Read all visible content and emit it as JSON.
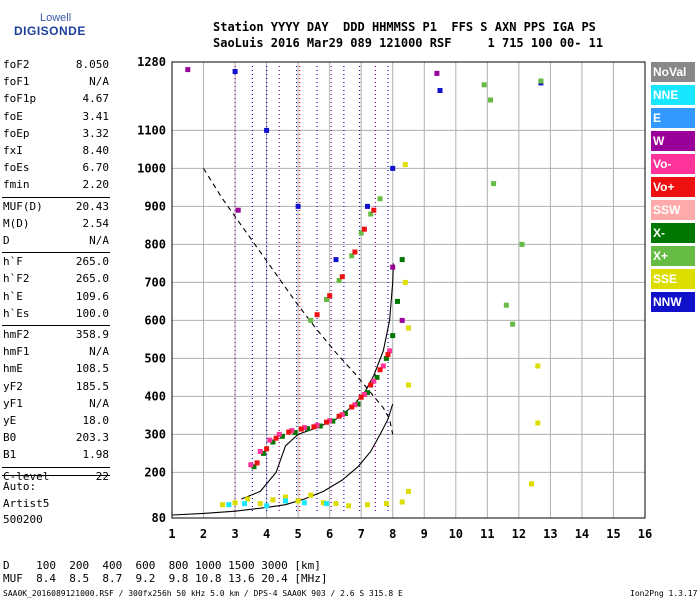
{
  "logo": {
    "line1": "Lowell",
    "line2": "DIGISONDE"
  },
  "header": {
    "row1": "Station YYYY DAY  DDD HHMMSS P1  FFS S AXN PPS IGA PS",
    "row2": "SaoLuis 2016 Mar29 089 121000 RSF     1 715 100 00- 11"
  },
  "params": [
    {
      "name": "foF2",
      "value": "8.050"
    },
    {
      "name": "foF1",
      "value": "N/A"
    },
    {
      "name": "foF1p",
      "value": "4.67"
    },
    {
      "name": "foE",
      "value": "3.41"
    },
    {
      "name": "foEp",
      "value": "3.32"
    },
    {
      "name": "fxI",
      "value": "8.40"
    },
    {
      "name": "foEs",
      "value": "6.70"
    },
    {
      "name": "fmin",
      "value": "2.20"
    },
    {
      "name": "MUF(D)",
      "value": "20.43"
    },
    {
      "name": "M(D)",
      "value": "2.54"
    },
    {
      "name": "D",
      "value": "N/A"
    },
    {
      "name": "h`F",
      "value": "265.0"
    },
    {
      "name": "h`F2",
      "value": "265.0"
    },
    {
      "name": "h`E",
      "value": "109.6"
    },
    {
      "name": "h`Es",
      "value": "100.0"
    },
    {
      "name": "hmF2",
      "value": "358.9"
    },
    {
      "name": "hmF1",
      "value": "N/A"
    },
    {
      "name": "hmE",
      "value": "108.5"
    },
    {
      "name": "yF2",
      "value": "185.5"
    },
    {
      "name": "yF1",
      "value": "N/A"
    },
    {
      "name": "yE",
      "value": "18.0"
    },
    {
      "name": "B0",
      "value": "203.3"
    },
    {
      "name": "B1",
      "value": "1.98"
    },
    {
      "name": "C-level",
      "value": "22"
    }
  ],
  "auto": {
    "line1": "Auto:",
    "line2": "Artist5",
    "line3": "500200"
  },
  "legend": [
    {
      "label": "NoVal",
      "color": "#888888"
    },
    {
      "label": "NNE",
      "color": "#19e6ff"
    },
    {
      "label": "E",
      "color": "#3399ff"
    },
    {
      "label": "W",
      "color": "#990099"
    },
    {
      "label": "Vo-",
      "color": "#ff3399"
    },
    {
      "label": "Vo+",
      "color": "#ee1111"
    },
    {
      "label": "SSW",
      "color": "#ffaaaa"
    },
    {
      "label": "X-",
      "color": "#007700"
    },
    {
      "label": "X+",
      "color": "#66bb44"
    },
    {
      "label": "SSE",
      "color": "#dddd00"
    },
    {
      "label": "NNW",
      "color": "#1111cc"
    }
  ],
  "muf_table": {
    "d_row": "D    100  200  400  600  800 1000 1500 3000 [km]",
    "muf_row": "MUF  8.4  8.5  8.7  9.2  9.8 10.8 13.6 20.4 [MHz]"
  },
  "footer": {
    "left": "SAA0K_2016089121000.RSF / 300fx256h 50 kHz 5.0 km / DPS-4 SAA0K 903 / 2.6 S 315.8 E",
    "right": "Ion2Png 1.3.17"
  },
  "chart_data": {
    "type": "scatter",
    "title": "",
    "xlabel": "",
    "ylabel": "",
    "xlim": [
      1,
      16
    ],
    "ylim": [
      80,
      1280
    ],
    "x_ticks": [
      1,
      2,
      3,
      4,
      5,
      6,
      7,
      8,
      9,
      10,
      11,
      12,
      13,
      14,
      15,
      16
    ],
    "y_ticks": [
      80,
      200,
      300,
      400,
      500,
      600,
      700,
      800,
      900,
      1000,
      1100,
      1280
    ],
    "grid": true,
    "series": [
      {
        "name": "X-",
        "color": "#007700",
        "points": [
          [
            3.6,
            215
          ],
          [
            3.9,
            250
          ],
          [
            4.2,
            280
          ],
          [
            4.5,
            295
          ],
          [
            4.9,
            305
          ],
          [
            5.3,
            315
          ],
          [
            5.7,
            322
          ],
          [
            6.1,
            335
          ],
          [
            6.5,
            355
          ],
          [
            6.9,
            380
          ],
          [
            7.2,
            410
          ],
          [
            7.5,
            450
          ],
          [
            7.8,
            500
          ],
          [
            8.0,
            560
          ],
          [
            8.15,
            650
          ],
          [
            8.3,
            760
          ]
        ]
      },
      {
        "name": "Vo-",
        "color": "#ff3399",
        "points": [
          [
            3.5,
            220
          ],
          [
            3.8,
            255
          ],
          [
            4.1,
            285
          ],
          [
            4.4,
            300
          ],
          [
            4.8,
            310
          ],
          [
            5.2,
            318
          ],
          [
            5.6,
            324
          ],
          [
            6.0,
            336
          ],
          [
            6.4,
            352
          ],
          [
            6.8,
            378
          ],
          [
            7.1,
            405
          ],
          [
            7.4,
            440
          ],
          [
            7.7,
            480
          ],
          [
            7.9,
            520
          ]
        ]
      },
      {
        "name": "Vo+",
        "color": "#ee1111",
        "points": [
          [
            3.7,
            225
          ],
          [
            4.0,
            262
          ],
          [
            4.3,
            290
          ],
          [
            4.7,
            306
          ],
          [
            5.1,
            314
          ],
          [
            5.5,
            320
          ],
          [
            5.9,
            332
          ],
          [
            6.3,
            348
          ],
          [
            6.7,
            372
          ],
          [
            7.0,
            398
          ],
          [
            7.3,
            430
          ],
          [
            7.6,
            470
          ],
          [
            7.85,
            510
          ]
        ]
      },
      {
        "name": "X+",
        "color": "#66bb44",
        "points": [
          [
            5.4,
            600
          ],
          [
            5.9,
            655
          ],
          [
            6.3,
            705
          ],
          [
            6.7,
            770
          ],
          [
            7.0,
            830
          ],
          [
            7.3,
            880
          ],
          [
            7.6,
            920
          ]
        ]
      },
      {
        "name": "Vo+",
        "color": "#ee1111",
        "points": [
          [
            5.6,
            615
          ],
          [
            6.0,
            665
          ],
          [
            6.4,
            715
          ],
          [
            6.8,
            780
          ],
          [
            7.1,
            840
          ],
          [
            7.4,
            890
          ]
        ]
      },
      {
        "name": "SSE",
        "color": "#dddd00",
        "points": [
          [
            2.6,
            115
          ],
          [
            3.0,
            120
          ],
          [
            3.4,
            130
          ],
          [
            3.8,
            118
          ],
          [
            4.2,
            128
          ],
          [
            4.6,
            135
          ],
          [
            5.0,
            125
          ],
          [
            5.4,
            140
          ],
          [
            5.8,
            120
          ],
          [
            6.2,
            118
          ],
          [
            6.6,
            112
          ],
          [
            7.2,
            115
          ],
          [
            7.8,
            118
          ],
          [
            8.3,
            122
          ]
        ]
      },
      {
        "name": "SSE",
        "color": "#dddd00",
        "points": [
          [
            8.4,
            1010
          ],
          [
            8.4,
            700
          ],
          [
            8.5,
            580
          ],
          [
            8.5,
            430
          ],
          [
            8.5,
            150
          ],
          [
            12.6,
            480
          ],
          [
            12.6,
            330
          ],
          [
            12.4,
            170
          ]
        ]
      },
      {
        "name": "NNE",
        "color": "#19e6ff",
        "points": [
          [
            2.8,
            115
          ],
          [
            3.3,
            118
          ],
          [
            4.0,
            112
          ],
          [
            4.6,
            125
          ],
          [
            5.2,
            120
          ],
          [
            5.9,
            118
          ]
        ]
      },
      {
        "name": "NNW",
        "color": "#1111cc",
        "points": [
          [
            3.0,
            1255
          ],
          [
            4.0,
            1100
          ],
          [
            5.0,
            900
          ],
          [
            6.2,
            760
          ],
          [
            7.2,
            900
          ],
          [
            8.0,
            1000
          ],
          [
            9.5,
            1205
          ],
          [
            12.7,
            1225
          ]
        ]
      },
      {
        "name": "W",
        "color": "#990099",
        "points": [
          [
            1.5,
            1260
          ],
          [
            3.1,
            890
          ],
          [
            8.0,
            740
          ],
          [
            8.3,
            600
          ],
          [
            9.4,
            1250
          ]
        ]
      },
      {
        "name": "X+",
        "color": "#66bb44",
        "points": [
          [
            10.9,
            1220
          ],
          [
            11.1,
            1180
          ],
          [
            11.2,
            960
          ],
          [
            11.6,
            640
          ],
          [
            12.1,
            800
          ],
          [
            11.8,
            590
          ],
          [
            12.7,
            1230
          ]
        ]
      }
    ],
    "curves": [
      {
        "name": "virtual",
        "style": "dashed",
        "color": "#000000",
        "points": [
          [
            2.0,
            1000
          ],
          [
            2.6,
            920
          ],
          [
            3.2,
            850
          ],
          [
            3.8,
            780
          ],
          [
            4.4,
            710
          ],
          [
            5.0,
            640
          ],
          [
            5.6,
            575
          ],
          [
            6.2,
            515
          ],
          [
            6.8,
            460
          ],
          [
            7.3,
            410
          ],
          [
            7.7,
            370
          ],
          [
            7.9,
            340
          ],
          [
            8.0,
            300
          ]
        ]
      },
      {
        "name": "profile",
        "style": "solid",
        "color": "#000000",
        "points": [
          [
            1.0,
            88
          ],
          [
            2.0,
            92
          ],
          [
            3.0,
            98
          ],
          [
            4.0,
            108
          ],
          [
            4.6,
            115
          ],
          [
            5.2,
            130
          ],
          [
            5.8,
            150
          ],
          [
            6.4,
            180
          ],
          [
            6.9,
            215
          ],
          [
            7.3,
            255
          ],
          [
            7.6,
            300
          ],
          [
            7.85,
            340
          ],
          [
            8.0,
            380
          ]
        ]
      },
      {
        "name": "trace",
        "style": "solid",
        "color": "#000000",
        "points": [
          [
            3.2,
            130
          ],
          [
            3.8,
            150
          ],
          [
            4.3,
            200
          ],
          [
            4.6,
            270
          ],
          [
            5.0,
            300
          ],
          [
            5.6,
            318
          ],
          [
            6.2,
            340
          ],
          [
            6.7,
            372
          ],
          [
            7.1,
            410
          ],
          [
            7.4,
            455
          ],
          [
            7.7,
            520
          ],
          [
            7.9,
            600
          ],
          [
            8.0,
            700
          ],
          [
            8.02,
            750
          ]
        ]
      }
    ],
    "vertical_noise_lines": [
      {
        "x": 3.0,
        "color": "#990099"
      },
      {
        "x": 3.55,
        "color": "#1111cc"
      },
      {
        "x": 4.0,
        "color": "#1111cc"
      },
      {
        "x": 4.4,
        "color": "#990099"
      },
      {
        "x": 4.95,
        "color": "#1111cc"
      },
      {
        "x": 5.05,
        "color": "#ee1111"
      },
      {
        "x": 5.6,
        "color": "#1111cc"
      },
      {
        "x": 6.05,
        "color": "#990099"
      },
      {
        "x": 6.45,
        "color": "#1111cc"
      },
      {
        "x": 6.95,
        "color": "#1111cc"
      },
      {
        "x": 7.45,
        "color": "#990099"
      },
      {
        "x": 7.85,
        "color": "#1111cc"
      }
    ]
  }
}
